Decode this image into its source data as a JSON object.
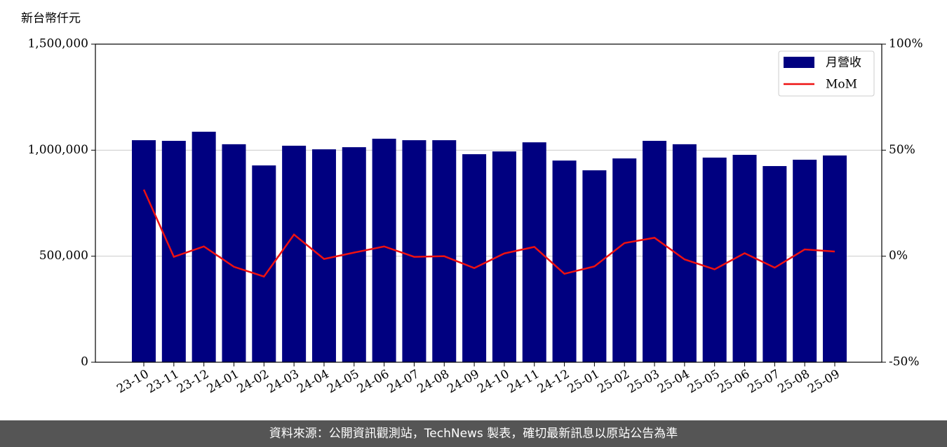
{
  "chart_data": {
    "type": "bar_line",
    "y_axis_label": "新台幣仟元",
    "categories": [
      "23-10",
      "23-11",
      "23-12",
      "24-01",
      "24-02",
      "24-03",
      "24-04",
      "24-05",
      "24-06",
      "24-07",
      "24-08",
      "24-09",
      "24-10",
      "24-11",
      "24-12",
      "25-01",
      "25-02",
      "25-03",
      "25-04",
      "25-05",
      "25-06",
      "25-07",
      "25-08",
      "25-09"
    ],
    "series": [
      {
        "name": "月營收",
        "color": "#000080",
        "type": "bar",
        "values": [
          1047000,
          1044000,
          1087000,
          1028000,
          928000,
          1021000,
          1004000,
          1014000,
          1054000,
          1047000,
          1047000,
          981000,
          994000,
          1037000,
          951000,
          905000,
          961000,
          1044000,
          1028000,
          965000,
          978000,
          925000,
          955000,
          975000
        ]
      },
      {
        "name": "MoM",
        "color": "#ee1111",
        "type": "line",
        "axis": "y2",
        "values": [
          31.4,
          -0.3,
          4.6,
          -5,
          -9.6,
          10.2,
          -1.3,
          1.7,
          4.6,
          -0.3,
          0,
          -5.6,
          1.3,
          4.4,
          -8.3,
          -4.8,
          6.2,
          8.7,
          -1.5,
          -6.2,
          1.4,
          -5.4,
          3.2,
          2.2
        ]
      }
    ],
    "ylim": [
      0,
      1500000
    ],
    "yticks": [
      0,
      {
        "value": 500000,
        "label": "500,000"
      },
      {
        "value": 1000000,
        "label": "1,000,000"
      },
      {
        "value": 1500000,
        "label": "1,500,000"
      }
    ],
    "y2lim": [
      -50,
      100
    ],
    "y2ticks": [
      {
        "value": -50,
        "label": "-50%"
      },
      {
        "value": 0,
        "label": "0%"
      },
      {
        "value": 50,
        "label": "50%"
      },
      {
        "value": 100,
        "label": "100%"
      }
    ],
    "grid": true,
    "legend": "upper right"
  },
  "footer": "資料來源：公開資訊觀測站，TechNews 製表，確切最新訊息以原站公告為準"
}
